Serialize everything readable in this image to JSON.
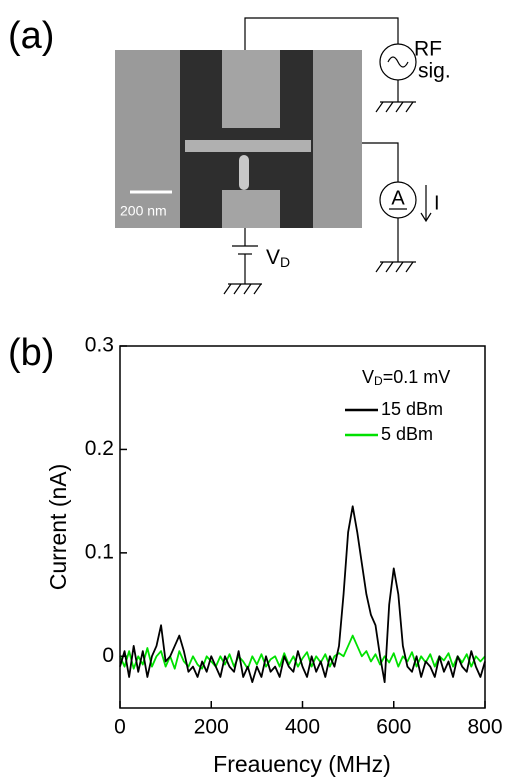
{
  "panel_a": {
    "label": "(a)",
    "rf_line1": "RF",
    "rf_line2": "sig.",
    "scale_bar": "200 nm",
    "ammeter": "A",
    "current": "I",
    "vd_main": "V",
    "vd_sub": "D"
  },
  "chart_data": {
    "type": "line",
    "panel_label": "(b)",
    "x_label": "Freauency (MHz)",
    "y_label": "Current (nA)",
    "annotation": {
      "main": "V",
      "sub": "D",
      "rest": "=0.1 mV"
    },
    "xlim": [
      0,
      800
    ],
    "xticks": [
      0,
      200,
      400,
      600,
      800
    ],
    "ylim": [
      -0.05,
      0.3
    ],
    "yticks": [
      0,
      0.1,
      0.2,
      0.3
    ],
    "x": [
      0,
      10,
      20,
      30,
      40,
      50,
      60,
      70,
      80,
      90,
      100,
      110,
      120,
      130,
      140,
      150,
      160,
      170,
      180,
      190,
      200,
      210,
      220,
      230,
      240,
      250,
      260,
      270,
      280,
      290,
      300,
      310,
      320,
      330,
      340,
      350,
      360,
      370,
      380,
      390,
      400,
      410,
      420,
      430,
      440,
      450,
      460,
      470,
      480,
      490,
      500,
      510,
      520,
      530,
      540,
      550,
      560,
      570,
      580,
      590,
      600,
      610,
      620,
      630,
      640,
      650,
      660,
      670,
      680,
      690,
      700,
      710,
      720,
      730,
      740,
      750,
      760,
      770,
      780,
      790,
      800
    ],
    "series": [
      {
        "name": "15 dBm",
        "color": "#000000",
        "values": [
          -0.01,
          0.005,
          -0.02,
          0.01,
          -0.015,
          0.005,
          -0.02,
          0.0,
          0.01,
          0.03,
          -0.005,
          0.0,
          0.01,
          0.02,
          0.005,
          -0.015,
          -0.01,
          -0.02,
          -0.005,
          -0.015,
          0.0,
          -0.01,
          -0.02,
          0.0,
          -0.01,
          -0.015,
          0.005,
          -0.02,
          -0.01,
          -0.025,
          -0.01,
          -0.02,
          0.0,
          -0.015,
          -0.01,
          -0.02,
          0.0,
          -0.01,
          -0.015,
          0.005,
          -0.01,
          -0.02,
          0.0,
          -0.015,
          -0.005,
          -0.02,
          0.0,
          -0.01,
          0.01,
          0.06,
          0.12,
          0.145,
          0.12,
          0.09,
          0.06,
          0.04,
          0.03,
          0.0,
          -0.025,
          0.05,
          0.085,
          0.06,
          0.01,
          -0.01,
          -0.015,
          0.0,
          -0.02,
          -0.005,
          -0.01,
          -0.02,
          0.0,
          -0.015,
          -0.005,
          -0.02,
          0.0,
          -0.01,
          -0.015,
          0.005,
          -0.01,
          -0.02,
          -0.005
        ]
      },
      {
        "name": "5 dBm",
        "color": "#00e000",
        "values": [
          0.0,
          -0.01,
          0.005,
          -0.012,
          0.0,
          -0.008,
          0.008,
          -0.01,
          0.0,
          0.005,
          -0.01,
          0.0,
          -0.012,
          0.005,
          -0.005,
          -0.01,
          0.0,
          -0.008,
          -0.012,
          0.0,
          -0.005,
          -0.01,
          0.0,
          -0.008,
          0.002,
          -0.01,
          0.0,
          -0.005,
          -0.012,
          0.0,
          -0.008,
          0.002,
          -0.01,
          -0.003,
          0.0,
          -0.01,
          0.003,
          -0.008,
          0.0,
          -0.01,
          -0.002,
          0.004,
          -0.01,
          0.0,
          -0.006,
          0.002,
          -0.01,
          0.0,
          0.003,
          0.0,
          0.01,
          0.02,
          0.01,
          0.0,
          0.005,
          -0.005,
          0.002,
          -0.008,
          0.0,
          -0.006,
          0.003,
          -0.01,
          0.0,
          -0.005,
          0.004,
          -0.01,
          0.0,
          -0.006,
          0.002,
          -0.01,
          0.0,
          -0.004,
          0.003,
          -0.01,
          0.0,
          -0.006,
          0.002,
          -0.01,
          0.0,
          -0.005,
          0.0
        ]
      }
    ]
  }
}
